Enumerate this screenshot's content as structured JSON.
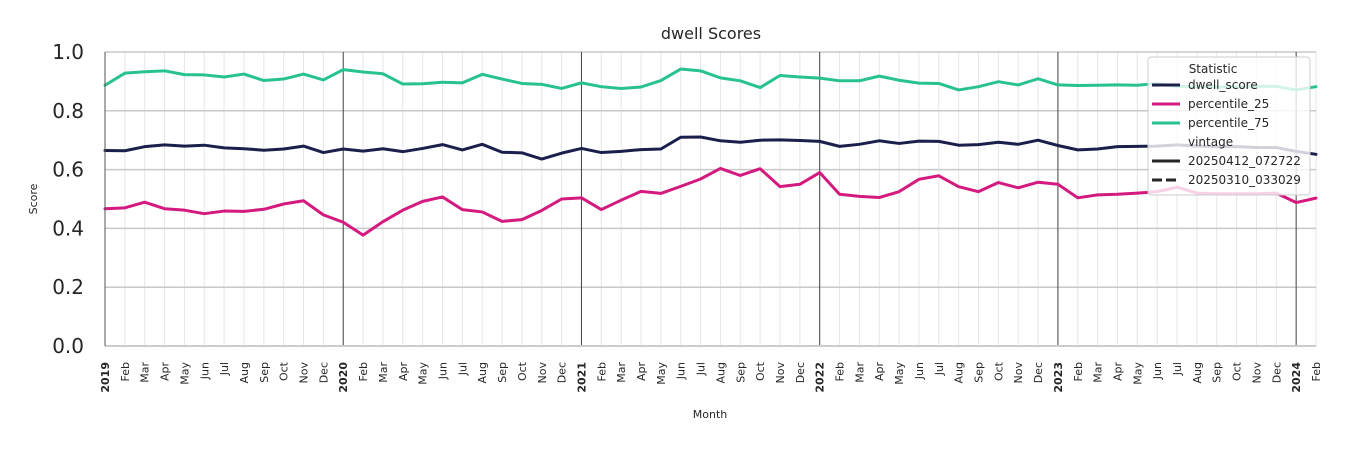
{
  "chart_data": {
    "type": "line",
    "title": "dwell Scores",
    "xlabel": "Month",
    "ylabel": "Score",
    "ylim": [
      0,
      1
    ],
    "y_ticks": [
      "0.0",
      "0.2",
      "0.4",
      "0.6",
      "0.8",
      "1.0"
    ],
    "grid": true,
    "legend_position": "top-right",
    "x": [
      "2019-01",
      "2019-02",
      "2019-03",
      "2019-04",
      "2019-05",
      "2019-06",
      "2019-07",
      "2019-08",
      "2019-09",
      "2019-10",
      "2019-11",
      "2019-12",
      "2020-01",
      "2020-02",
      "2020-03",
      "2020-04",
      "2020-05",
      "2020-06",
      "2020-07",
      "2020-08",
      "2020-09",
      "2020-10",
      "2020-11",
      "2020-12",
      "2021-01",
      "2021-02",
      "2021-03",
      "2021-04",
      "2021-05",
      "2021-06",
      "2021-07",
      "2021-08",
      "2021-09",
      "2021-10",
      "2021-11",
      "2021-12",
      "2022-01",
      "2022-02",
      "2022-03",
      "2022-04",
      "2022-05",
      "2022-06",
      "2022-07",
      "2022-08",
      "2022-09",
      "2022-10",
      "2022-11",
      "2022-12",
      "2023-01",
      "2023-02",
      "2023-03",
      "2023-04",
      "2023-05",
      "2023-06",
      "2023-07",
      "2023-08",
      "2023-09",
      "2023-10",
      "2023-11",
      "2023-12",
      "2024-01",
      "2024-02"
    ],
    "x_tick_labels": [
      "2019",
      "Feb",
      "Mar",
      "Apr",
      "May",
      "Jun",
      "Jul",
      "Aug",
      "Sep",
      "Oct",
      "Nov",
      "Dec",
      "2020",
      "Feb",
      "Mar",
      "Apr",
      "May",
      "Jun",
      "Jul",
      "Aug",
      "Sep",
      "Oct",
      "Nov",
      "Dec",
      "2021",
      "Feb",
      "Mar",
      "Apr",
      "May",
      "Jun",
      "Jul",
      "Aug",
      "Sep",
      "Oct",
      "Nov",
      "Dec",
      "2022",
      "Feb",
      "Mar",
      "Apr",
      "May",
      "Jun",
      "Jul",
      "Aug",
      "Sep",
      "Oct",
      "Nov",
      "Dec",
      "2023",
      "Feb",
      "Mar",
      "Apr",
      "May",
      "Jun",
      "Jul",
      "Aug",
      "Sep",
      "Oct",
      "Nov",
      "Dec",
      "2024",
      "Feb"
    ],
    "series": [
      {
        "name": "dwell_score",
        "color": "#1b1f4b",
        "vintage": "20250412_072722",
        "values": [
          0.665,
          0.664,
          0.678,
          0.684,
          0.68,
          0.683,
          0.674,
          0.671,
          0.666,
          0.67,
          0.68,
          0.658,
          0.67,
          0.663,
          0.671,
          0.661,
          0.672,
          0.685,
          0.667,
          0.686,
          0.659,
          0.657,
          0.636,
          0.656,
          0.672,
          0.658,
          0.662,
          0.668,
          0.67,
          0.71,
          0.711,
          0.698,
          0.693,
          0.7,
          0.701,
          0.699,
          0.696,
          0.679,
          0.686,
          0.698,
          0.689,
          0.697,
          0.696,
          0.683,
          0.685,
          0.693,
          0.686,
          0.7,
          0.682,
          0.667,
          0.67,
          0.678,
          0.679,
          0.68,
          0.684,
          0.68,
          0.678,
          0.678,
          0.675,
          0.675,
          0.662,
          0.652
        ]
      },
      {
        "name": "percentile_25",
        "color": "#d4197f",
        "vintage": "20250412_072722",
        "values": [
          0.467,
          0.47,
          0.489,
          0.467,
          0.462,
          0.45,
          0.459,
          0.458,
          0.465,
          0.483,
          0.494,
          0.446,
          0.421,
          0.377,
          0.423,
          0.462,
          0.492,
          0.507,
          0.464,
          0.456,
          0.424,
          0.43,
          0.461,
          0.5,
          0.504,
          0.464,
          0.496,
          0.526,
          0.519,
          0.543,
          0.568,
          0.604,
          0.58,
          0.603,
          0.542,
          0.55,
          0.59,
          0.516,
          0.509,
          0.505,
          0.525,
          0.567,
          0.579,
          0.542,
          0.525,
          0.556,
          0.538,
          0.557,
          0.55,
          0.504,
          0.514,
          0.516,
          0.52,
          0.525,
          0.54,
          0.52,
          0.518,
          0.518,
          0.518,
          0.52,
          0.488,
          0.503
        ]
      },
      {
        "name": "percentile_75",
        "color": "#27c28f",
        "vintage": "20250412_072722",
        "values": [
          0.887,
          0.928,
          0.933,
          0.936,
          0.923,
          0.922,
          0.915,
          0.925,
          0.903,
          0.908,
          0.925,
          0.905,
          0.94,
          0.932,
          0.926,
          0.891,
          0.892,
          0.897,
          0.895,
          0.924,
          0.908,
          0.893,
          0.89,
          0.876,
          0.895,
          0.882,
          0.876,
          0.881,
          0.903,
          0.942,
          0.936,
          0.912,
          0.902,
          0.879,
          0.92,
          0.915,
          0.911,
          0.902,
          0.902,
          0.918,
          0.904,
          0.894,
          0.893,
          0.871,
          0.882,
          0.899,
          0.888,
          0.909,
          0.888,
          0.886,
          0.887,
          0.888,
          0.887,
          0.893,
          0.883,
          0.882,
          0.881,
          0.881,
          0.883,
          0.883,
          0.871,
          0.882
        ]
      }
    ],
    "legend": {
      "title": "Statistic",
      "entries": [
        {
          "label": "dwell_score",
          "color": "#1b1f4b",
          "style": "solid"
        },
        {
          "label": "percentile_25",
          "color": "#d4197f",
          "style": "solid"
        },
        {
          "label": "percentile_75",
          "color": "#27c28f",
          "style": "solid"
        }
      ],
      "subtitle": "vintage",
      "vintage_entries": [
        {
          "label": "20250412_072722",
          "color": "#262626",
          "style": "solid"
        },
        {
          "label": "20250310_033029",
          "color": "#262626",
          "style": "dashed"
        }
      ]
    }
  }
}
